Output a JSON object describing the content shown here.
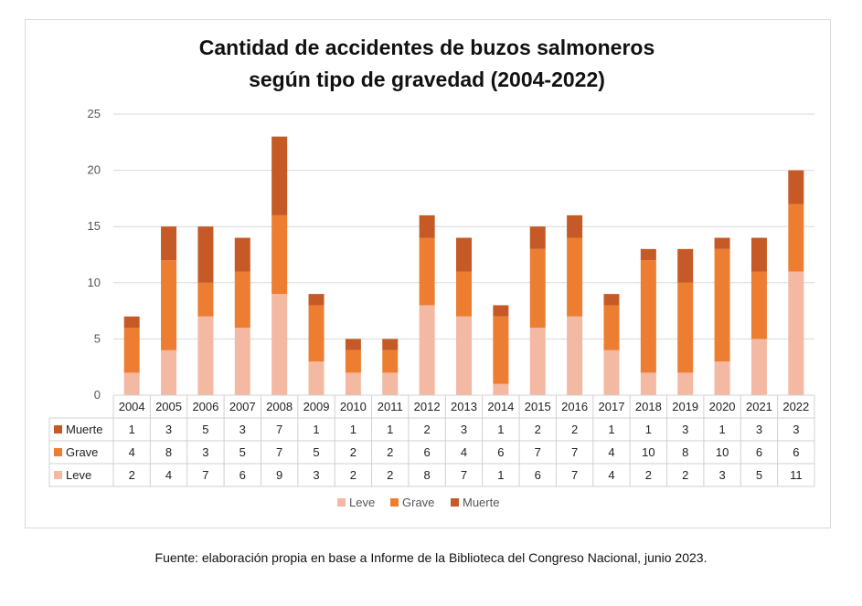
{
  "chart_data": {
    "type": "bar",
    "stacked": true,
    "title_lines": [
      "Cantidad de accidentes de buzos salmoneros",
      "según tipo de gravedad (2004-2022)"
    ],
    "categories": [
      "2004",
      "2005",
      "2006",
      "2007",
      "2008",
      "2009",
      "2010",
      "2011",
      "2012",
      "2013",
      "2014",
      "2015",
      "2016",
      "2017",
      "2018",
      "2019",
      "2020",
      "2021",
      "2022"
    ],
    "series": [
      {
        "name": "Leve",
        "color": "#f4b9a2",
        "values": [
          2,
          4,
          7,
          6,
          9,
          3,
          2,
          2,
          8,
          7,
          1,
          6,
          7,
          4,
          2,
          2,
          3,
          5,
          11
        ]
      },
      {
        "name": "Grave",
        "color": "#ed7d31",
        "values": [
          4,
          8,
          3,
          5,
          7,
          5,
          2,
          2,
          6,
          4,
          6,
          7,
          7,
          4,
          10,
          8,
          10,
          6,
          6
        ]
      },
      {
        "name": "Muerte",
        "color": "#c55a26",
        "values": [
          1,
          3,
          5,
          3,
          7,
          1,
          1,
          1,
          2,
          3,
          1,
          2,
          2,
          1,
          1,
          3,
          1,
          3,
          3
        ]
      }
    ],
    "ylim": [
      0,
      25
    ],
    "yticks": [
      0,
      5,
      10,
      15,
      20,
      25
    ],
    "grid": true,
    "data_table": true,
    "legend_position": "bottom"
  },
  "source_note": "Fuente: elaboración propia en base a Informe de la Biblioteca del Congreso Nacional, junio 2023."
}
